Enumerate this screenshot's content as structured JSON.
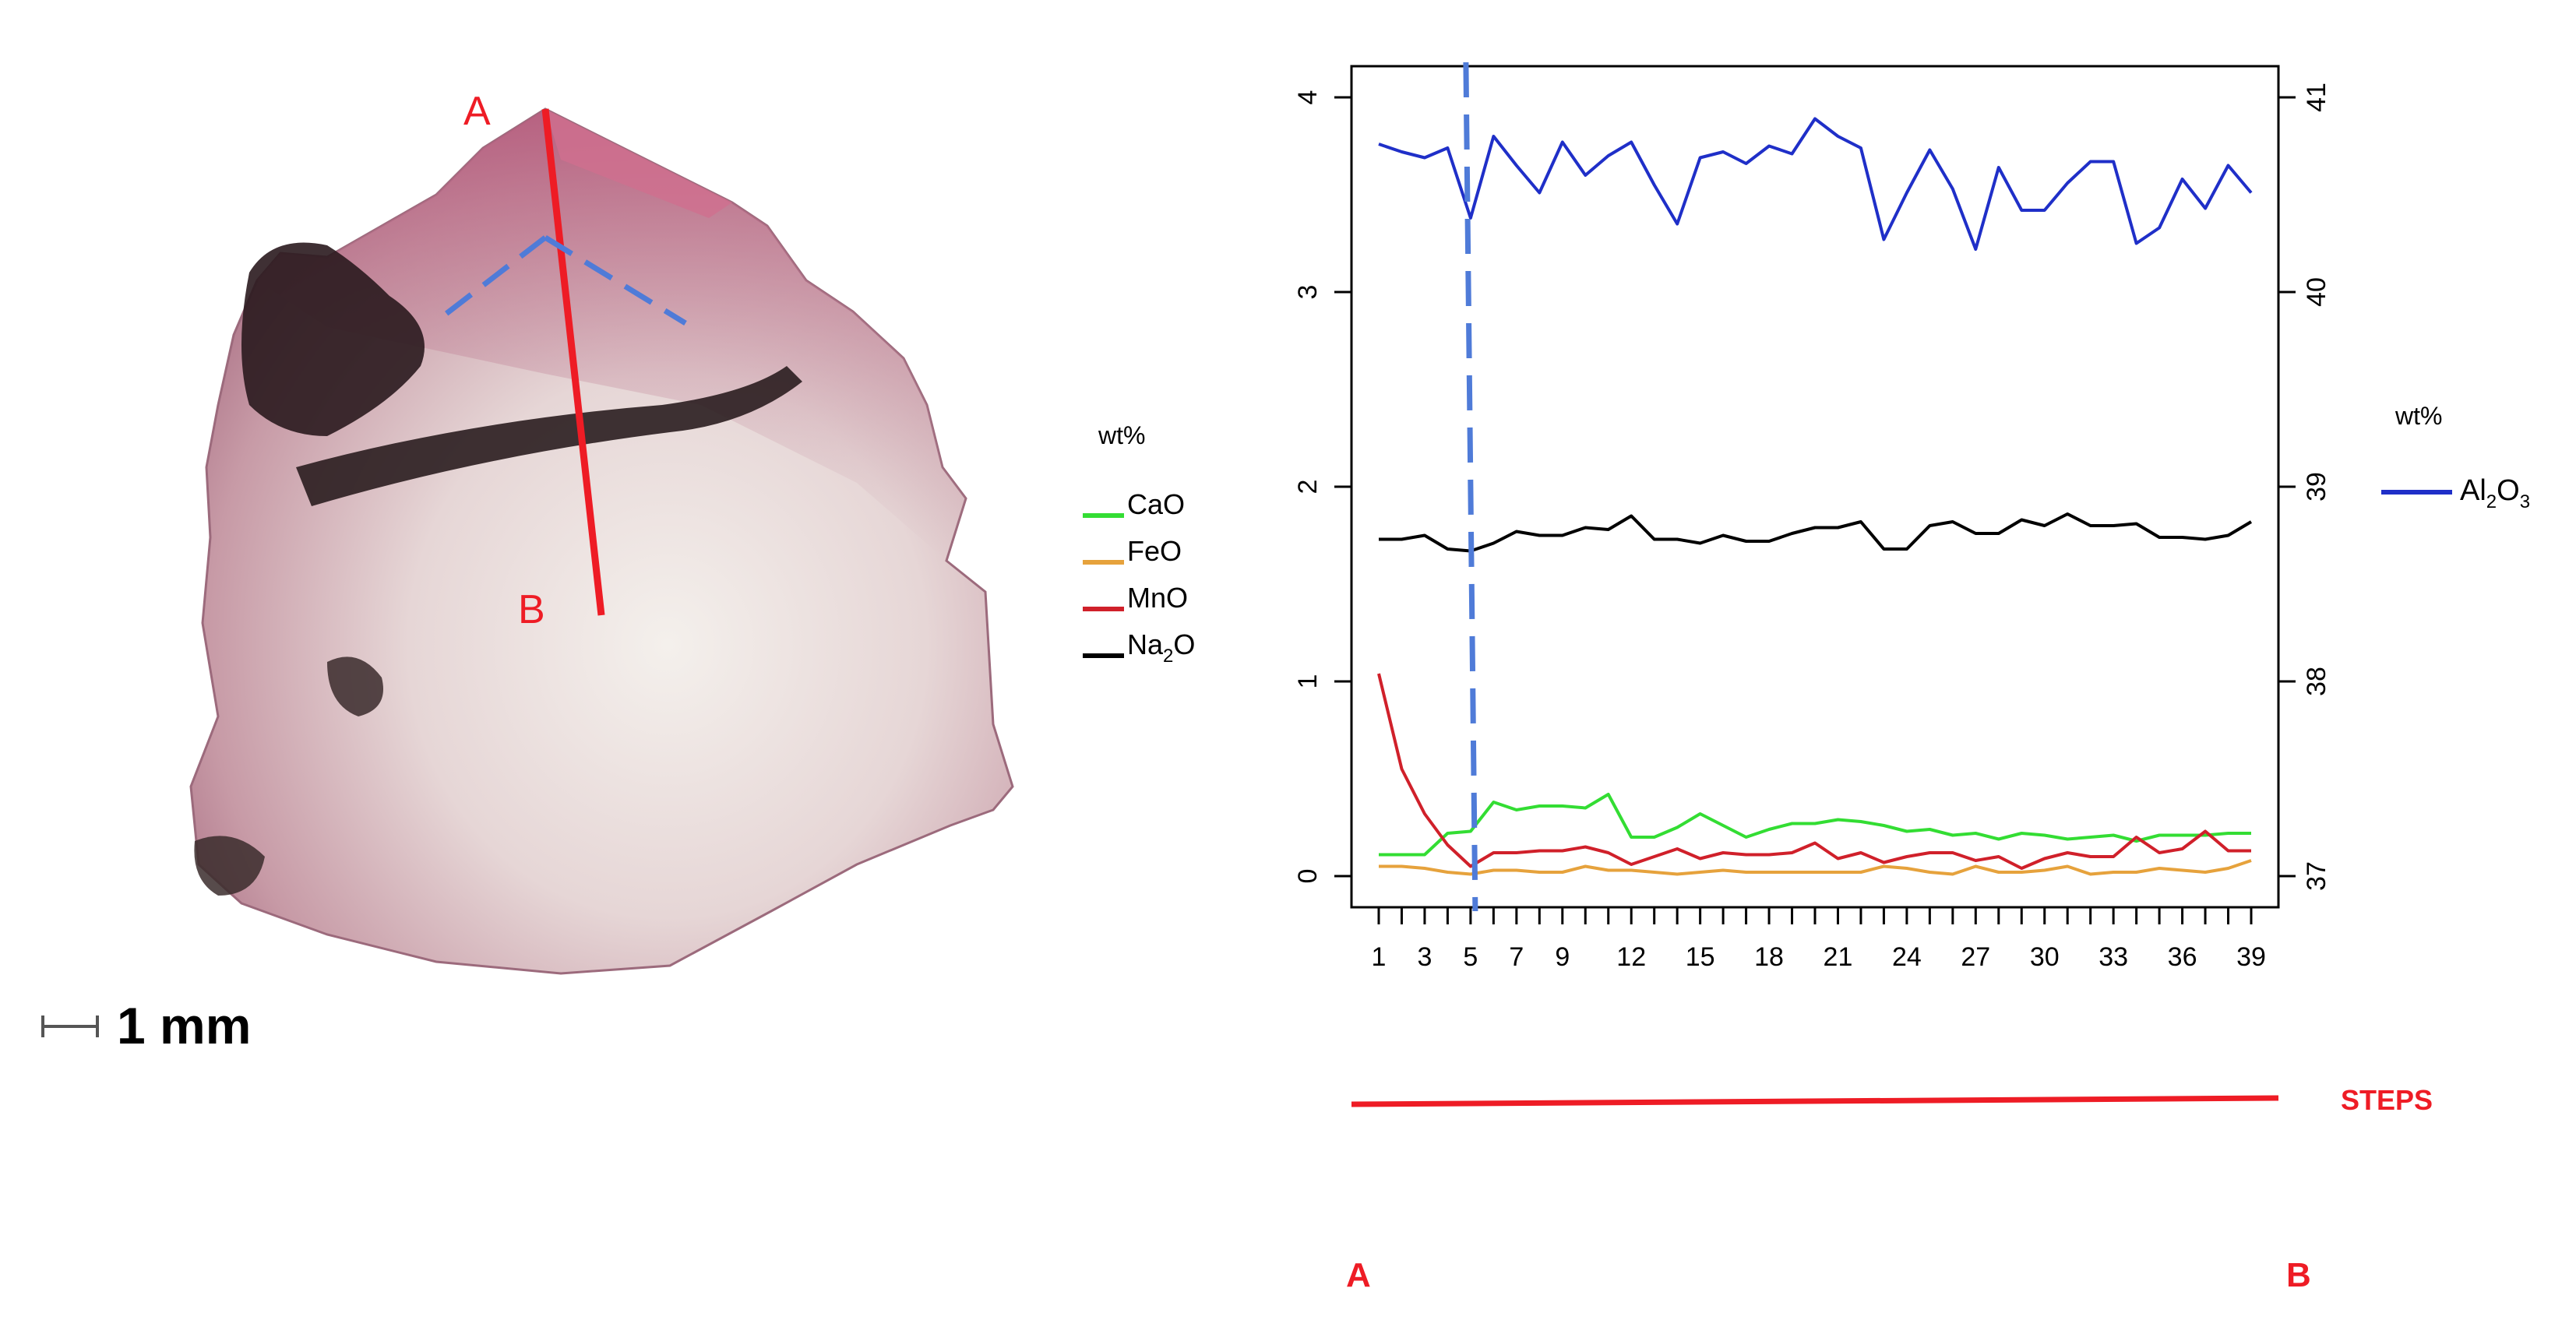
{
  "photo": {
    "label_a": "A",
    "label_b": "B",
    "scale_text": "1 mm"
  },
  "legend_left": {
    "title": "wt%",
    "items": [
      {
        "label": "CaO",
        "color": "#33dd33"
      },
      {
        "label": "FeO",
        "color": "#e6a23c"
      },
      {
        "label": "MnO",
        "color": "#d0202a"
      },
      {
        "label": "Na",
        "sub": "2",
        "suffix": "O",
        "color": "#000000"
      }
    ]
  },
  "legend_right": {
    "title": "wt%",
    "items": [
      {
        "label": "Al",
        "sub": "2",
        "mid": "O",
        "sub2": "3",
        "color": "#1f2fc8"
      }
    ]
  },
  "steps_label": "STEPS",
  "path_start": "A",
  "path_end": "B",
  "chart_data": {
    "type": "line",
    "x": [
      1,
      2,
      3,
      4,
      5,
      6,
      7,
      8,
      9,
      10,
      11,
      12,
      13,
      14,
      15,
      16,
      17,
      18,
      19,
      20,
      21,
      22,
      23,
      24,
      25,
      26,
      27,
      28,
      29,
      30,
      31,
      32,
      33,
      34,
      35,
      36,
      37,
      38,
      39
    ],
    "x_tick_labels": [
      "1",
      "3",
      "5",
      "7",
      "9",
      "12",
      "15",
      "18",
      "21",
      "24",
      "27",
      "30",
      "33",
      "36",
      "39"
    ],
    "y_left": {
      "ylim": [
        0,
        4
      ],
      "ticks": [
        "0",
        "1",
        "2",
        "3",
        "4"
      ]
    },
    "y_right": {
      "ylim": [
        37,
        41
      ],
      "ticks": [
        "37",
        "38",
        "39",
        "40",
        "41"
      ]
    },
    "marker_x": 5,
    "series": [
      {
        "name": "CaO",
        "axis": "left",
        "color": "#33dd33",
        "values": [
          0.11,
          0.11,
          0.11,
          0.22,
          0.23,
          0.38,
          0.34,
          0.36,
          0.36,
          0.35,
          0.42,
          0.2,
          0.2,
          0.25,
          0.32,
          0.26,
          0.2,
          0.24,
          0.27,
          0.27,
          0.29,
          0.28,
          0.26,
          0.23,
          0.24,
          0.21,
          0.22,
          0.19,
          0.22,
          0.21,
          0.19,
          0.2,
          0.21,
          0.18,
          0.21,
          0.21,
          0.21,
          0.22,
          0.22
        ]
      },
      {
        "name": "FeO",
        "axis": "left",
        "color": "#e6a23c",
        "values": [
          0.05,
          0.05,
          0.04,
          0.02,
          0.01,
          0.03,
          0.03,
          0.02,
          0.02,
          0.05,
          0.03,
          0.03,
          0.02,
          0.01,
          0.02,
          0.03,
          0.02,
          0.02,
          0.02,
          0.02,
          0.02,
          0.02,
          0.05,
          0.04,
          0.02,
          0.01,
          0.05,
          0.02,
          0.02,
          0.03,
          0.05,
          0.01,
          0.02,
          0.02,
          0.04,
          0.03,
          0.02,
          0.04,
          0.08
        ]
      },
      {
        "name": "MnO",
        "axis": "left",
        "color": "#d0202a",
        "values": [
          1.04,
          0.55,
          0.32,
          0.16,
          0.05,
          0.12,
          0.12,
          0.13,
          0.13,
          0.15,
          0.12,
          0.06,
          0.1,
          0.14,
          0.09,
          0.12,
          0.11,
          0.11,
          0.12,
          0.17,
          0.09,
          0.12,
          0.07,
          0.1,
          0.12,
          0.12,
          0.08,
          0.1,
          0.04,
          0.09,
          0.12,
          0.1,
          0.1,
          0.2,
          0.12,
          0.14,
          0.23,
          0.13,
          0.13
        ]
      },
      {
        "name": "Na2O",
        "axis": "left",
        "color": "#000000",
        "values": [
          1.73,
          1.73,
          1.75,
          1.68,
          1.67,
          1.71,
          1.77,
          1.75,
          1.75,
          1.79,
          1.78,
          1.85,
          1.73,
          1.73,
          1.71,
          1.75,
          1.72,
          1.72,
          1.76,
          1.79,
          1.79,
          1.82,
          1.68,
          1.68,
          1.8,
          1.82,
          1.76,
          1.76,
          1.83,
          1.8,
          1.86,
          1.8,
          1.8,
          1.81,
          1.74,
          1.74,
          1.73,
          1.75,
          1.82
        ]
      },
      {
        "name": "Al2O3",
        "axis": "right",
        "color": "#1f2fc8",
        "values": [
          40.76,
          40.72,
          40.69,
          40.74,
          40.38,
          40.8,
          40.65,
          40.51,
          40.77,
          40.6,
          40.7,
          40.77,
          40.55,
          40.35,
          40.69,
          40.72,
          40.66,
          40.75,
          40.71,
          40.89,
          40.8,
          40.74,
          40.27,
          40.51,
          40.73,
          40.53,
          40.22,
          40.64,
          40.42,
          40.42,
          40.56,
          40.67,
          40.67,
          40.25,
          40.33,
          40.58,
          40.43,
          40.65,
          40.51
        ]
      }
    ]
  }
}
